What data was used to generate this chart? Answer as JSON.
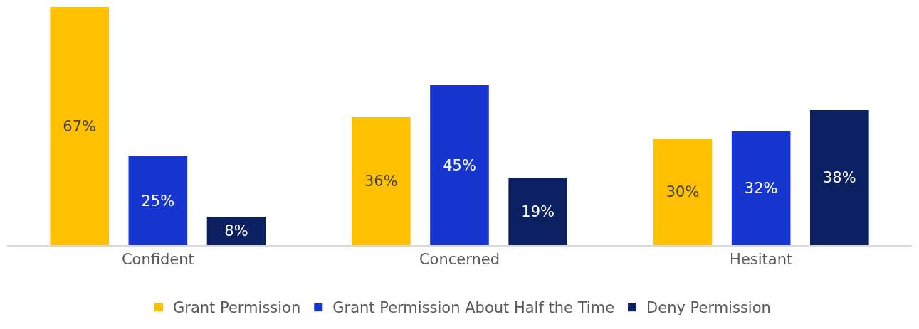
{
  "chart_data": {
    "type": "bar",
    "categories": [
      "Confident",
      "Concerned",
      "Hesitant"
    ],
    "series": [
      {
        "name": "Grant Permission",
        "color": "#ffc000",
        "values": [
          67,
          36,
          30
        ],
        "value_labels": [
          "67%",
          "36%",
          "30%"
        ]
      },
      {
        "name": "Grant Permission About Half the Time",
        "color": "#1736d0",
        "values": [
          25,
          45,
          32
        ],
        "value_labels": [
          "25%",
          "45%",
          "32%"
        ]
      },
      {
        "name": "Deny Permission",
        "color": "#0a2060",
        "values": [
          8,
          19,
          38
        ],
        "value_labels": [
          "8%",
          "19%",
          "38%"
        ]
      }
    ],
    "ylim": [
      0,
      67
    ],
    "tick_labels": "x",
    "grid": false,
    "legend": "bottom"
  }
}
